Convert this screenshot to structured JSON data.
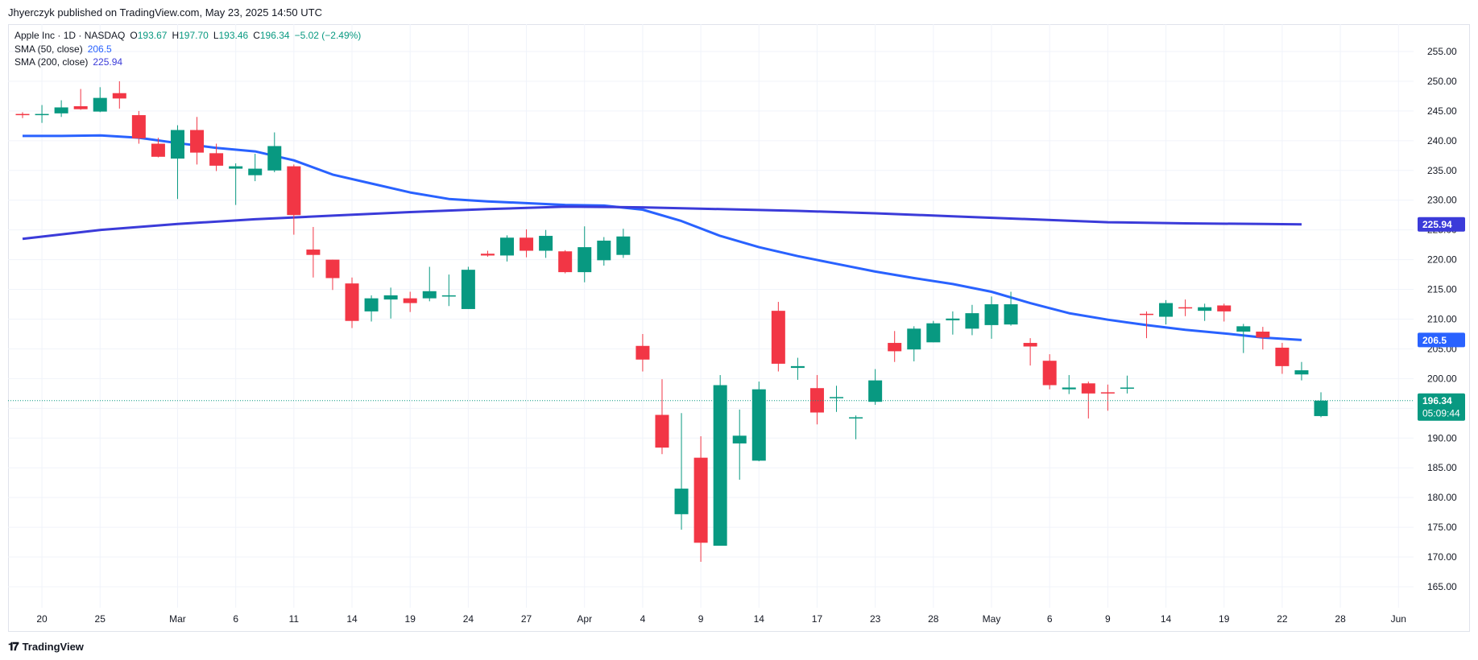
{
  "publisher": "Jhyerczyk published on TradingView.com, May 23, 2025 14:50 UTC",
  "legend": {
    "symbol": "Apple Inc · 1D · NASDAQ",
    "open_label": "O",
    "open": "193.67",
    "high_label": "H",
    "high": "197.70",
    "low_label": "L",
    "low": "193.46",
    "close_label": "C",
    "close": "196.34",
    "change": "−5.02 (−2.49%)",
    "sma50_label": "SMA (50, close)",
    "sma50_value": "206.5",
    "sma200_label": "SMA (200, close)",
    "sma200_value": "225.94"
  },
  "footer": {
    "logo": "TradingView"
  },
  "price_badges": {
    "sma200": "225.94",
    "sma50": "206.5",
    "last": "196.34",
    "countdown": "05:09:44"
  },
  "colors": {
    "up": "#089981",
    "down": "#f23645",
    "sma50": "#2962ff",
    "sma200": "#3b3bd9",
    "grid": "#f0f3fa"
  },
  "chart_data": {
    "type": "candlestick",
    "ylim": [
      160,
      258
    ],
    "y_ticks": [
      165,
      170,
      175,
      180,
      185,
      190,
      195,
      200,
      205,
      210,
      215,
      220,
      225,
      230,
      235,
      240,
      245,
      250,
      255
    ],
    "x_ticks": [
      {
        "label": "20",
        "slot": 1
      },
      {
        "label": "25",
        "slot": 4
      },
      {
        "label": "Mar",
        "slot": 8
      },
      {
        "label": "6",
        "slot": 11
      },
      {
        "label": "11",
        "slot": 14
      },
      {
        "label": "14",
        "slot": 17
      },
      {
        "label": "19",
        "slot": 20
      },
      {
        "label": "24",
        "slot": 23
      },
      {
        "label": "27",
        "slot": 26
      },
      {
        "label": "Apr",
        "slot": 29
      },
      {
        "label": "4",
        "slot": 32
      },
      {
        "label": "9",
        "slot": 35
      },
      {
        "label": "14",
        "slot": 38
      },
      {
        "label": "17",
        "slot": 41
      },
      {
        "label": "23",
        "slot": 44
      },
      {
        "label": "28",
        "slot": 47
      },
      {
        "label": "May",
        "slot": 50
      },
      {
        "label": "6",
        "slot": 53
      },
      {
        "label": "9",
        "slot": 56
      },
      {
        "label": "14",
        "slot": 59
      },
      {
        "label": "19",
        "slot": 62
      },
      {
        "label": "22",
        "slot": 65
      },
      {
        "label": "28",
        "slot": 68
      },
      {
        "label": "Jun",
        "slot": 71
      }
    ],
    "candles": [
      {
        "slot": 0,
        "o": 244.5,
        "h": 244.8,
        "l": 243.8,
        "c": 244.3
      },
      {
        "slot": 1,
        "o": 244.3,
        "h": 246.0,
        "l": 243.0,
        "c": 244.5
      },
      {
        "slot": 2,
        "o": 244.6,
        "h": 246.8,
        "l": 244.0,
        "c": 245.6
      },
      {
        "slot": 3,
        "o": 245.8,
        "h": 248.7,
        "l": 245.2,
        "c": 245.3
      },
      {
        "slot": 4,
        "o": 244.9,
        "h": 249.0,
        "l": 244.8,
        "c": 247.2
      },
      {
        "slot": 5,
        "o": 248.0,
        "h": 250.0,
        "l": 245.4,
        "c": 247.1
      },
      {
        "slot": 6,
        "o": 244.3,
        "h": 245.0,
        "l": 239.5,
        "c": 240.4
      },
      {
        "slot": 7,
        "o": 239.5,
        "h": 240.5,
        "l": 237.2,
        "c": 237.3
      },
      {
        "slot": 8,
        "o": 237.0,
        "h": 242.6,
        "l": 230.2,
        "c": 241.8
      },
      {
        "slot": 9,
        "o": 241.8,
        "h": 244.0,
        "l": 236.0,
        "c": 238.0
      },
      {
        "slot": 10,
        "o": 237.9,
        "h": 239.5,
        "l": 234.9,
        "c": 235.8
      },
      {
        "slot": 11,
        "o": 235.3,
        "h": 236.2,
        "l": 229.2,
        "c": 235.7
      },
      {
        "slot": 12,
        "o": 234.2,
        "h": 237.8,
        "l": 233.2,
        "c": 235.3
      },
      {
        "slot": 13,
        "o": 235.0,
        "h": 241.4,
        "l": 234.7,
        "c": 239.1
      },
      {
        "slot": 14,
        "o": 235.7,
        "h": 236.0,
        "l": 224.2,
        "c": 227.5
      },
      {
        "slot": 15,
        "o": 221.7,
        "h": 225.5,
        "l": 217.0,
        "c": 220.8
      },
      {
        "slot": 16,
        "o": 220.0,
        "h": 220.0,
        "l": 214.9,
        "c": 216.9
      },
      {
        "slot": 17,
        "o": 216.0,
        "h": 217.0,
        "l": 208.5,
        "c": 209.7
      },
      {
        "slot": 18,
        "o": 211.3,
        "h": 214.0,
        "l": 209.6,
        "c": 213.5
      },
      {
        "slot": 19,
        "o": 213.3,
        "h": 215.3,
        "l": 210.1,
        "c": 214.0
      },
      {
        "slot": 20,
        "o": 213.5,
        "h": 214.6,
        "l": 211.2,
        "c": 212.7
      },
      {
        "slot": 21,
        "o": 213.5,
        "h": 218.8,
        "l": 213.0,
        "c": 214.7
      },
      {
        "slot": 22,
        "o": 214.0,
        "h": 217.5,
        "l": 212.2,
        "c": 214.0
      },
      {
        "slot": 23,
        "o": 211.7,
        "h": 218.8,
        "l": 211.7,
        "c": 218.3
      },
      {
        "slot": 24,
        "o": 221.0,
        "h": 221.5,
        "l": 220.5,
        "c": 220.7
      },
      {
        "slot": 25,
        "o": 220.7,
        "h": 224.1,
        "l": 219.7,
        "c": 223.7
      },
      {
        "slot": 26,
        "o": 223.7,
        "h": 225.1,
        "l": 220.4,
        "c": 221.5
      },
      {
        "slot": 27,
        "o": 221.5,
        "h": 225.0,
        "l": 220.3,
        "c": 224.0
      },
      {
        "slot": 28,
        "o": 221.4,
        "h": 221.6,
        "l": 217.7,
        "c": 217.9
      },
      {
        "slot": 29,
        "o": 217.9,
        "h": 225.6,
        "l": 216.2,
        "c": 222.1
      },
      {
        "slot": 30,
        "o": 219.9,
        "h": 223.8,
        "l": 219.0,
        "c": 223.2
      },
      {
        "slot": 31,
        "o": 220.8,
        "h": 225.2,
        "l": 220.3,
        "c": 223.9
      },
      {
        "slot": 32,
        "o": 205.5,
        "h": 207.5,
        "l": 201.2,
        "c": 203.2
      },
      {
        "slot": 33,
        "o": 193.9,
        "h": 199.9,
        "l": 187.3,
        "c": 188.4
      },
      {
        "slot": 34,
        "o": 177.2,
        "h": 194.2,
        "l": 174.6,
        "c": 181.5
      },
      {
        "slot": 35,
        "o": 186.7,
        "h": 190.3,
        "l": 169.2,
        "c": 172.4
      },
      {
        "slot": 36,
        "o": 171.9,
        "h": 200.6,
        "l": 171.9,
        "c": 198.9
      },
      {
        "slot": 37,
        "o": 189.1,
        "h": 194.8,
        "l": 183.0,
        "c": 190.4
      },
      {
        "slot": 38,
        "o": 186.2,
        "h": 199.5,
        "l": 186.1,
        "c": 198.2
      },
      {
        "slot": 39,
        "o": 211.4,
        "h": 212.9,
        "l": 201.2,
        "c": 202.5
      },
      {
        "slot": 40,
        "o": 201.8,
        "h": 203.5,
        "l": 199.8,
        "c": 202.1
      },
      {
        "slot": 41,
        "o": 198.4,
        "h": 200.6,
        "l": 192.3,
        "c": 194.3
      },
      {
        "slot": 42,
        "o": 196.7,
        "h": 198.8,
        "l": 194.4,
        "c": 196.9
      },
      {
        "slot": 43,
        "o": 193.5,
        "h": 193.8,
        "l": 189.8,
        "c": 193.5
      },
      {
        "slot": 44,
        "o": 196.1,
        "h": 201.6,
        "l": 195.6,
        "c": 199.7
      },
      {
        "slot": 45,
        "o": 206.0,
        "h": 208.0,
        "l": 202.8,
        "c": 204.6
      },
      {
        "slot": 46,
        "o": 204.9,
        "h": 208.8,
        "l": 202.9,
        "c": 208.4
      },
      {
        "slot": 47,
        "o": 206.1,
        "h": 209.7,
        "l": 206.1,
        "c": 209.3
      },
      {
        "slot": 48,
        "o": 209.8,
        "h": 211.3,
        "l": 207.4,
        "c": 210.1
      },
      {
        "slot": 49,
        "o": 208.4,
        "h": 212.4,
        "l": 207.3,
        "c": 211.0
      },
      {
        "slot": 50,
        "o": 209.0,
        "h": 213.8,
        "l": 206.7,
        "c": 212.5
      },
      {
        "slot": 51,
        "o": 209.1,
        "h": 214.6,
        "l": 208.9,
        "c": 212.5
      },
      {
        "slot": 52,
        "o": 206.0,
        "h": 206.8,
        "l": 202.2,
        "c": 205.4
      },
      {
        "slot": 53,
        "o": 203.0,
        "h": 204.1,
        "l": 198.2,
        "c": 198.9
      },
      {
        "slot": 54,
        "o": 198.2,
        "h": 200.6,
        "l": 197.4,
        "c": 198.5
      },
      {
        "slot": 55,
        "o": 199.2,
        "h": 199.5,
        "l": 193.3,
        "c": 197.5
      },
      {
        "slot": 56,
        "o": 197.7,
        "h": 199.0,
        "l": 194.6,
        "c": 197.5
      },
      {
        "slot": 57,
        "o": 198.4,
        "h": 200.5,
        "l": 197.5,
        "c": 198.5
      },
      {
        "slot": 58,
        "o": 210.9,
        "h": 211.3,
        "l": 206.8,
        "c": 210.8
      },
      {
        "slot": 59,
        "o": 210.4,
        "h": 213.2,
        "l": 209.1,
        "c": 212.7
      },
      {
        "slot": 60,
        "o": 212.0,
        "h": 213.3,
        "l": 210.5,
        "c": 211.8
      },
      {
        "slot": 61,
        "o": 211.4,
        "h": 212.6,
        "l": 209.7,
        "c": 212.0
      },
      {
        "slot": 62,
        "o": 212.3,
        "h": 212.6,
        "l": 209.6,
        "c": 211.3
      },
      {
        "slot": 63,
        "o": 207.9,
        "h": 209.2,
        "l": 204.3,
        "c": 208.8
      },
      {
        "slot": 64,
        "o": 207.9,
        "h": 208.7,
        "l": 204.9,
        "c": 206.9
      },
      {
        "slot": 65,
        "o": 205.2,
        "h": 206.0,
        "l": 200.8,
        "c": 202.1
      },
      {
        "slot": 66,
        "o": 200.7,
        "h": 202.8,
        "l": 199.7,
        "c": 201.4
      },
      {
        "slot": 67,
        "o": 193.7,
        "h": 197.7,
        "l": 193.5,
        "c": 196.3
      }
    ],
    "series": [
      {
        "name": "SMA (50, close)",
        "points": [
          [
            0,
            240.8
          ],
          [
            2,
            240.8
          ],
          [
            4,
            240.9
          ],
          [
            6,
            240.5
          ],
          [
            8,
            239.6
          ],
          [
            10,
            238.8
          ],
          [
            12,
            238.2
          ],
          [
            14,
            236.7
          ],
          [
            16,
            234.3
          ],
          [
            18,
            232.8
          ],
          [
            20,
            231.3
          ],
          [
            22,
            230.2
          ],
          [
            24,
            229.8
          ],
          [
            26,
            229.5
          ],
          [
            28,
            229.2
          ],
          [
            30,
            229.1
          ],
          [
            32,
            228.4
          ],
          [
            34,
            226.5
          ],
          [
            36,
            224.0
          ],
          [
            38,
            222.1
          ],
          [
            40,
            220.6
          ],
          [
            42,
            219.3
          ],
          [
            44,
            218.0
          ],
          [
            46,
            216.9
          ],
          [
            48,
            215.9
          ],
          [
            50,
            214.6
          ],
          [
            52,
            212.7
          ],
          [
            54,
            211.0
          ],
          [
            56,
            209.9
          ],
          [
            58,
            209.0
          ],
          [
            60,
            208.2
          ],
          [
            62,
            207.6
          ],
          [
            64,
            206.9
          ],
          [
            66,
            206.5
          ]
        ]
      },
      {
        "name": "SMA (200, close)",
        "points": [
          [
            0,
            223.5
          ],
          [
            4,
            225.0
          ],
          [
            8,
            226.0
          ],
          [
            12,
            226.8
          ],
          [
            16,
            227.4
          ],
          [
            20,
            228.0
          ],
          [
            24,
            228.5
          ],
          [
            28,
            228.9
          ],
          [
            32,
            228.8
          ],
          [
            36,
            228.5
          ],
          [
            40,
            228.2
          ],
          [
            44,
            227.8
          ],
          [
            48,
            227.3
          ],
          [
            52,
            226.8
          ],
          [
            56,
            226.3
          ],
          [
            60,
            226.1
          ],
          [
            64,
            226.0
          ],
          [
            66,
            225.94
          ]
        ]
      }
    ]
  }
}
